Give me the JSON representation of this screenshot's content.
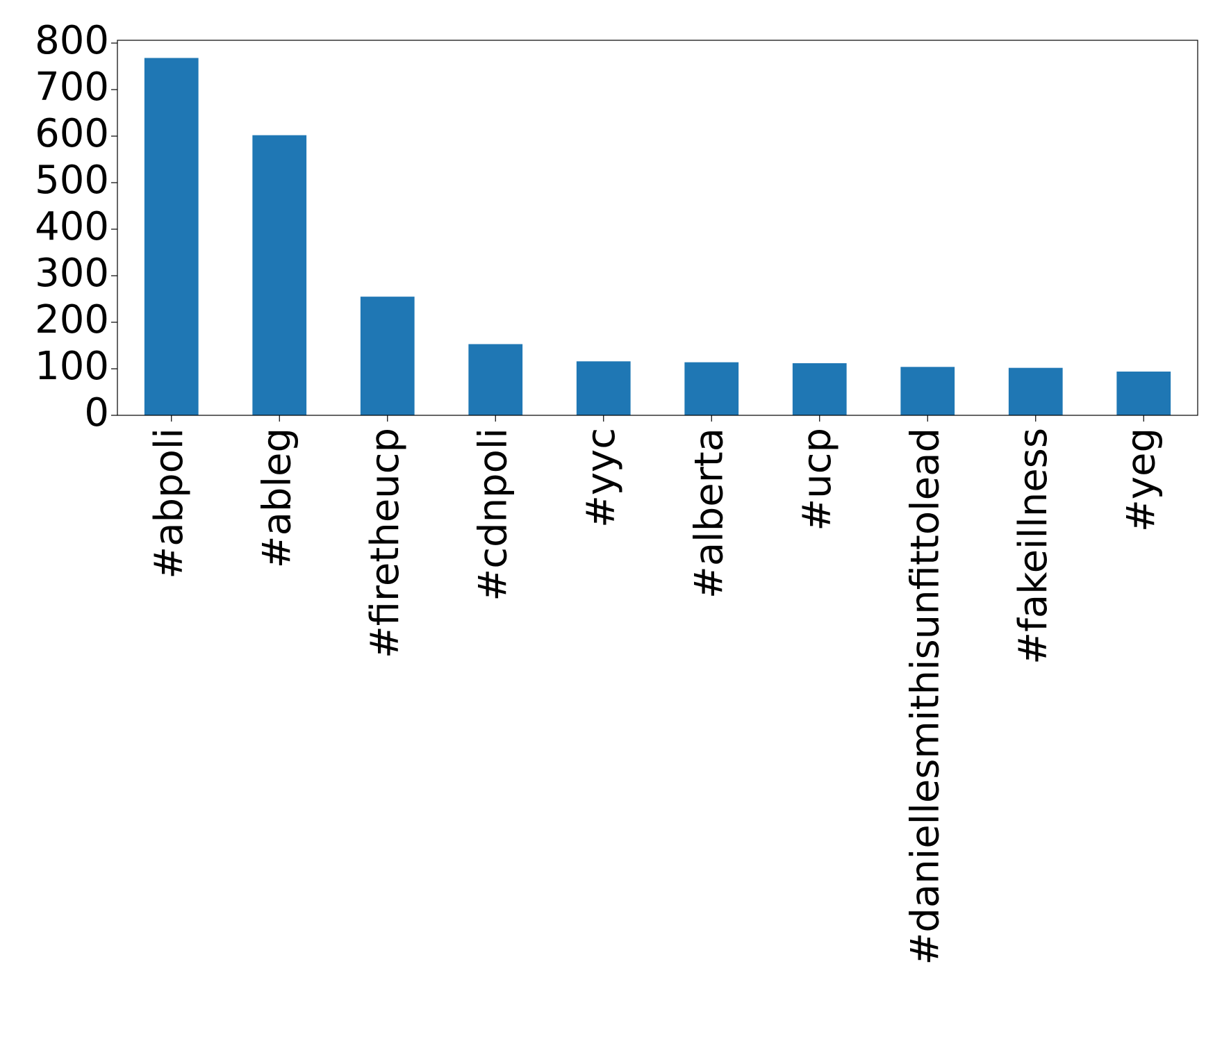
{
  "chart_data": {
    "type": "bar",
    "categories": [
      "#abpoli",
      "#ableg",
      "#firetheucp",
      "#cdnpoli",
      "#yyc",
      "#alberta",
      "#ucp",
      "#daniellesmithisunfittolead",
      "#fakeillness",
      "#yeg"
    ],
    "values": [
      768,
      602,
      255,
      153,
      116,
      114,
      112,
      104,
      102,
      94
    ],
    "color": "#1f77b4",
    "ylim": [
      0,
      806
    ],
    "yticks": [
      0,
      100,
      200,
      300,
      400,
      500,
      600,
      700,
      800
    ],
    "grid": false
  }
}
